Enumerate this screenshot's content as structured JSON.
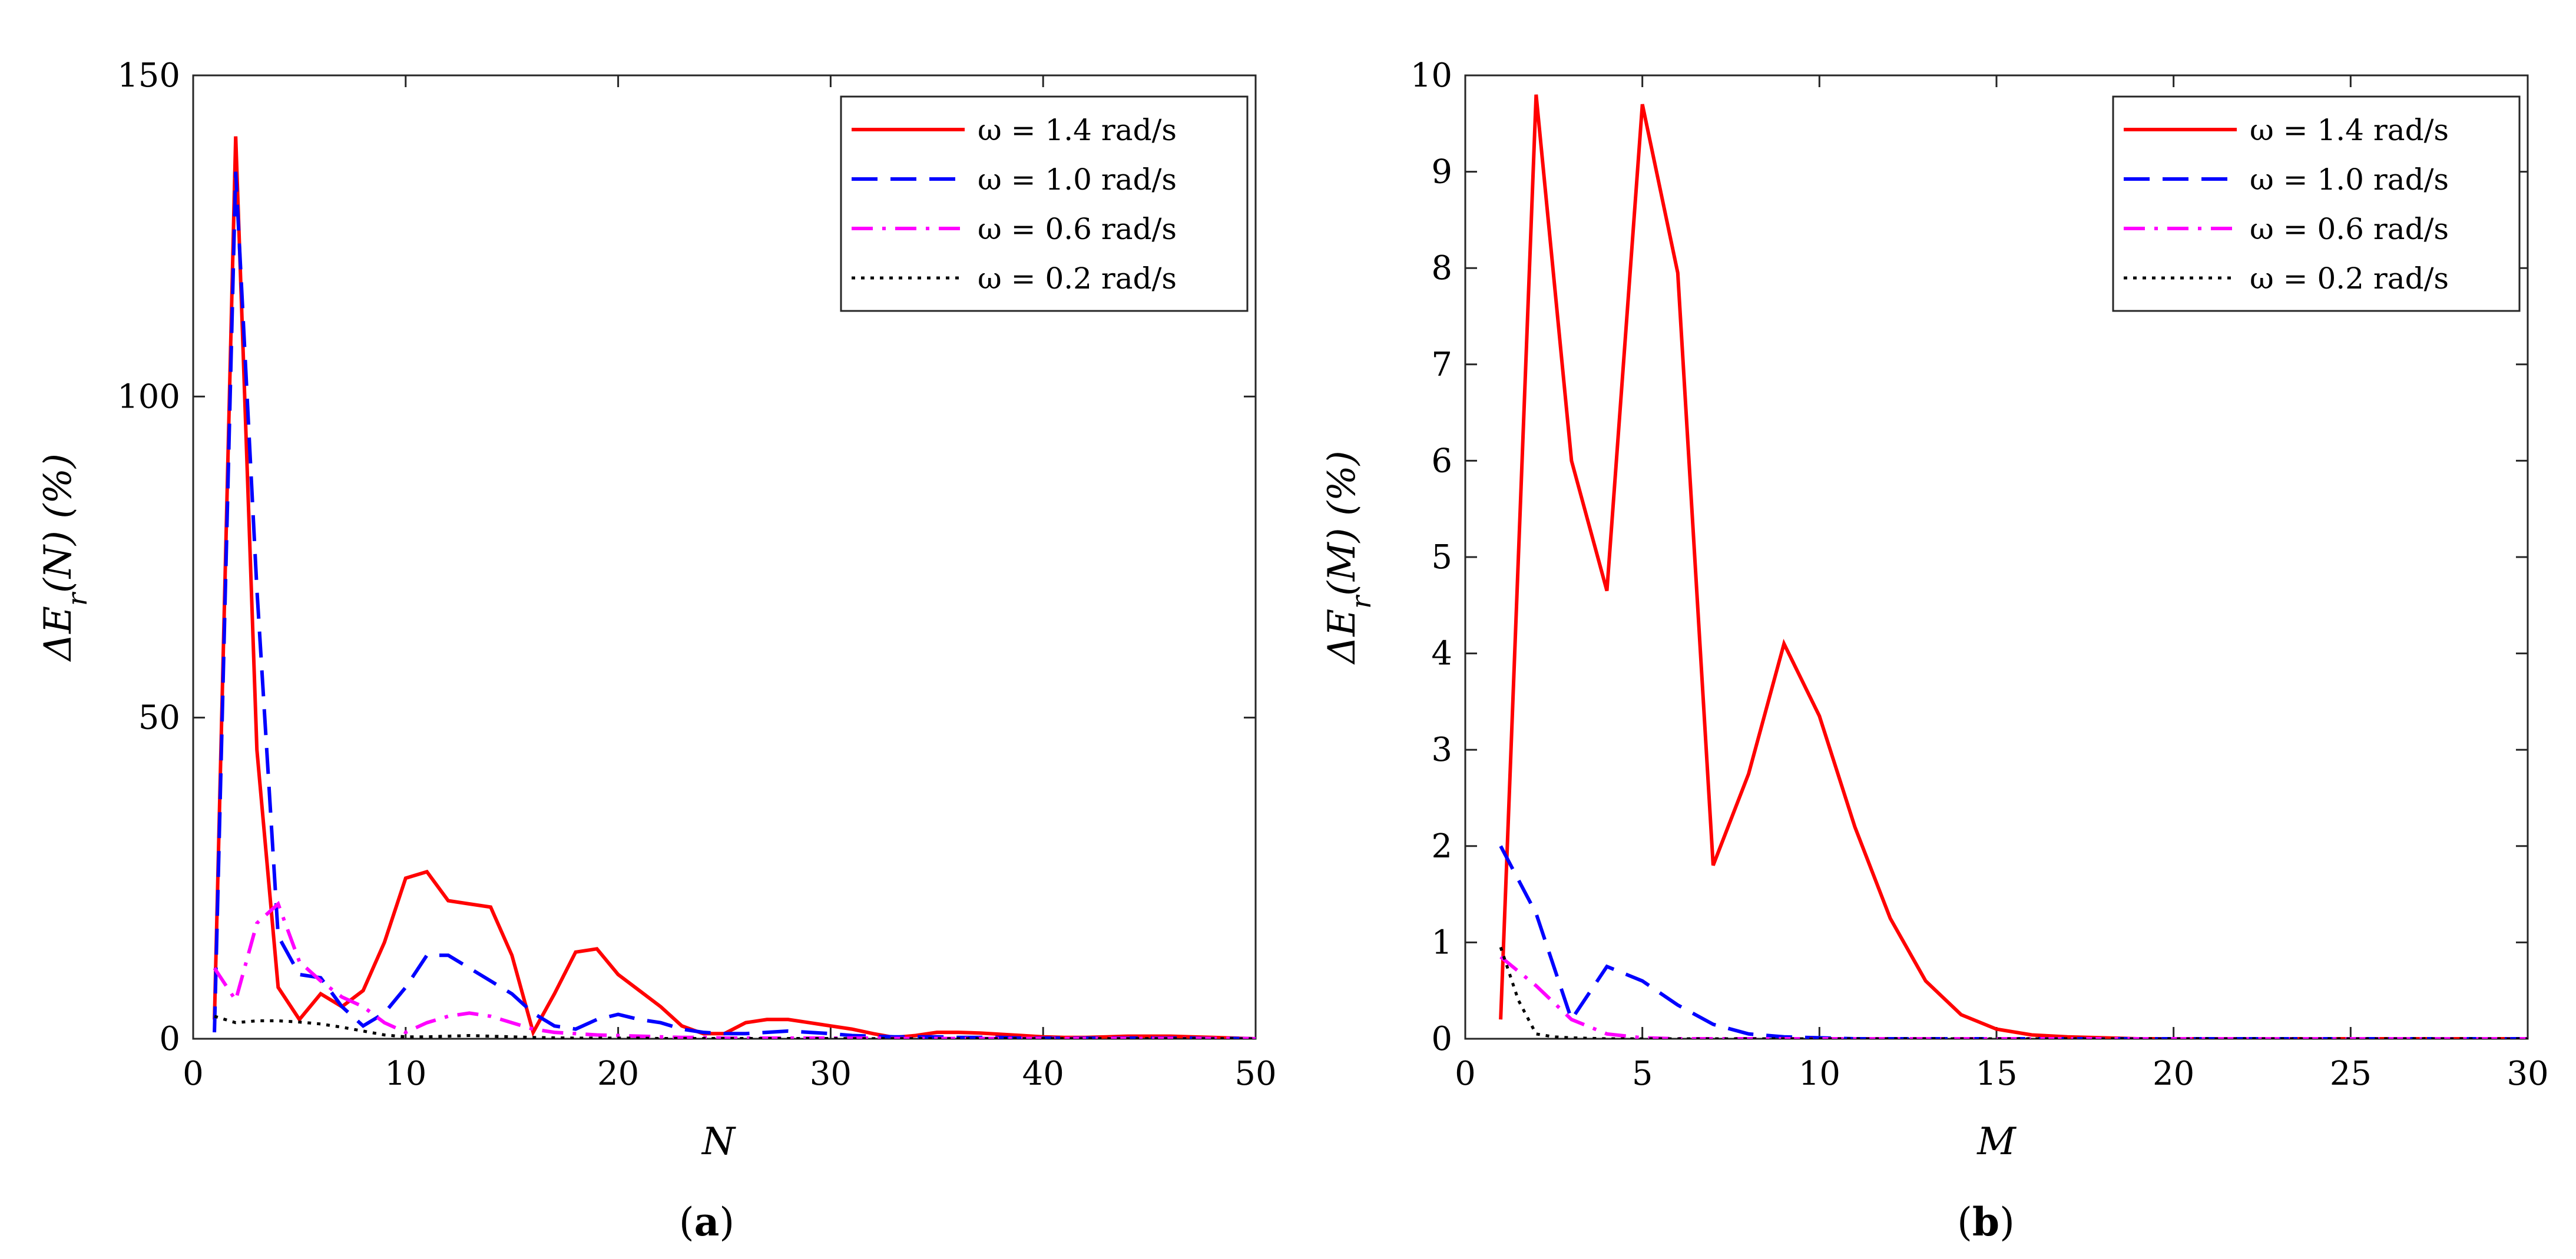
{
  "chart_data": [
    {
      "id": "a",
      "type": "line",
      "caption_letter": "a",
      "xlabel": "N",
      "ylabel": "ΔE_r(N) (%)",
      "xlim": [
        0,
        50
      ],
      "ylim": [
        0,
        150
      ],
      "xticks": [
        0,
        10,
        20,
        30,
        40,
        50
      ],
      "yticks": [
        0,
        50,
        100,
        150
      ],
      "grid": false,
      "legend_position": "top-right",
      "series": [
        {
          "name": "ω = 1.4 rad/s",
          "color": "#ff0000",
          "style": "solid",
          "x": [
            1,
            2,
            3,
            4,
            5,
            6,
            7,
            8,
            9,
            10,
            11,
            12,
            13,
            14,
            15,
            16,
            17,
            18,
            19,
            20,
            21,
            22,
            23,
            24,
            25,
            26,
            27,
            28,
            29,
            30,
            31,
            32,
            33,
            34,
            35,
            36,
            37,
            38,
            39,
            40,
            41,
            42,
            43,
            44,
            45,
            46,
            47,
            48,
            49,
            50
          ],
          "values": [
            3,
            140.5,
            45,
            8,
            3,
            7,
            5,
            7.5,
            15,
            25,
            26,
            21.5,
            21,
            20.5,
            13,
            1,
            7,
            13.5,
            14,
            10,
            7.5,
            5,
            2,
            0.8,
            0.8,
            2.5,
            3,
            3,
            2.5,
            2,
            1.5,
            0.8,
            0.2,
            0.5,
            1,
            1,
            0.9,
            0.7,
            0.5,
            0.3,
            0.2,
            0.2,
            0.3,
            0.4,
            0.4,
            0.4,
            0.3,
            0.2,
            0.1,
            0
          ]
        },
        {
          "name": "ω = 1.0 rad/s",
          "color": "#0000ff",
          "style": "dashed",
          "x": [
            1,
            2,
            3,
            4,
            5,
            6,
            7,
            8,
            9,
            10,
            11,
            12,
            13,
            14,
            15,
            16,
            17,
            18,
            19,
            20,
            21,
            22,
            23,
            24,
            25,
            26,
            27,
            28,
            29,
            30,
            31,
            32,
            33,
            34,
            35,
            36,
            37,
            38,
            39,
            40,
            41,
            42,
            43,
            44,
            45,
            46,
            47,
            48,
            49,
            50
          ],
          "values": [
            1,
            135,
            70,
            16,
            10,
            9.5,
            5,
            2,
            4,
            8,
            13,
            13,
            11,
            9,
            7,
            4,
            2,
            1.5,
            3,
            3.8,
            3,
            2.5,
            1.5,
            1,
            0.8,
            0.8,
            1,
            1.2,
            1,
            0.8,
            0.5,
            0.4,
            0.3,
            0.3,
            0.3,
            0.2,
            0.2,
            0.2,
            0.1,
            0.1,
            0.1,
            0.1,
            0.1,
            0.1,
            0.1,
            0.1,
            0.1,
            0.05,
            0.05,
            0
          ]
        },
        {
          "name": "ω = 0.6 rad/s",
          "color": "#ff00ff",
          "style": "dashdot",
          "x": [
            1,
            2,
            3,
            4,
            5,
            6,
            7,
            8,
            9,
            10,
            11,
            12,
            13,
            14,
            15,
            16,
            17,
            18,
            19,
            20,
            21,
            22,
            23,
            24,
            25,
            26,
            27,
            28,
            29,
            30,
            31,
            32,
            33,
            34,
            35,
            36,
            37,
            38,
            39,
            40,
            41,
            42,
            43,
            44,
            45,
            46,
            47,
            48,
            49,
            50
          ],
          "values": [
            11,
            6,
            18,
            21,
            12,
            9,
            6.5,
            5,
            2.5,
            1,
            2.5,
            3.5,
            4,
            3.5,
            2.5,
            1.5,
            1,
            0.8,
            0.6,
            0.5,
            0.4,
            0.3,
            0.2,
            0.2,
            0.1,
            0.1,
            0.1,
            0.1,
            0.1,
            0.1,
            0.1,
            0.1,
            0.05,
            0.05,
            0.05,
            0.05,
            0.05,
            0.05,
            0.05,
            0.05,
            0.05,
            0.05,
            0.05,
            0.05,
            0.05,
            0.05,
            0.05,
            0.05,
            0.05,
            0
          ]
        },
        {
          "name": "ω = 0.2 rad/s",
          "color": "#000000",
          "style": "dotted",
          "x": [
            1,
            2,
            3,
            4,
            5,
            6,
            7,
            8,
            9,
            10,
            11,
            12,
            13,
            14,
            15,
            16,
            17,
            18,
            19,
            20,
            21,
            22,
            23,
            24,
            25,
            26,
            27,
            28,
            29,
            30,
            31,
            32,
            33,
            34,
            35,
            36,
            37,
            38,
            39,
            40,
            41,
            42,
            43,
            44,
            45,
            46,
            47,
            48,
            49,
            50
          ],
          "values": [
            3.5,
            2.5,
            2.8,
            2.8,
            2.6,
            2.3,
            1.8,
            1.2,
            0.6,
            0.3,
            0.3,
            0.4,
            0.5,
            0.4,
            0.3,
            0.2,
            0.15,
            0.1,
            0.1,
            0.1,
            0.1,
            0.05,
            0.05,
            0.05,
            0.05,
            0.05,
            0.05,
            0.05,
            0.05,
            0.05,
            0.02,
            0.02,
            0.02,
            0.02,
            0.02,
            0.02,
            0.02,
            0.02,
            0.02,
            0.02,
            0.02,
            0.02,
            0.02,
            0.02,
            0.02,
            0.02,
            0.02,
            0.02,
            0.02,
            0
          ]
        }
      ]
    },
    {
      "id": "b",
      "type": "line",
      "caption_letter": "b",
      "xlabel": "M",
      "ylabel": "ΔE_r(M) (%)",
      "xlim": [
        0,
        30
      ],
      "ylim": [
        0,
        10
      ],
      "xticks": [
        0,
        5,
        10,
        15,
        20,
        25,
        30
      ],
      "yticks": [
        0,
        1,
        2,
        3,
        4,
        5,
        6,
        7,
        8,
        9,
        10
      ],
      "grid": false,
      "legend_position": "top-right",
      "series": [
        {
          "name": "ω = 1.4 rad/s",
          "color": "#ff0000",
          "style": "solid",
          "x": [
            1,
            2,
            3,
            4,
            5,
            6,
            7,
            8,
            9,
            10,
            11,
            12,
            13,
            14,
            15,
            16,
            17,
            18,
            19,
            20,
            21,
            22,
            23,
            24,
            25,
            26,
            27,
            28,
            29,
            30
          ],
          "values": [
            0.2,
            9.8,
            6,
            4.65,
            9.7,
            7.95,
            1.8,
            2.75,
            4.1,
            3.35,
            2.2,
            1.25,
            0.6,
            0.25,
            0.1,
            0.04,
            0.02,
            0.01,
            0,
            0,
            0,
            0,
            0,
            0,
            0,
            0,
            0,
            0,
            0,
            0
          ]
        },
        {
          "name": "ω = 1.0 rad/s",
          "color": "#0000ff",
          "style": "dashed",
          "x": [
            1,
            2,
            3,
            4,
            5,
            6,
            7,
            8,
            9,
            10,
            11,
            12,
            13,
            14,
            15,
            16,
            17,
            18,
            19,
            20,
            21,
            22,
            23,
            24,
            25,
            26,
            27,
            28,
            29,
            30
          ],
          "values": [
            2,
            1.3,
            0.2,
            0.75,
            0.6,
            0.35,
            0.15,
            0.05,
            0.02,
            0.01,
            0,
            0,
            0,
            0,
            0,
            0,
            0,
            0,
            0,
            0,
            0,
            0,
            0,
            0,
            0,
            0,
            0,
            0,
            0,
            0
          ]
        },
        {
          "name": "ω = 0.6 rad/s",
          "color": "#ff00ff",
          "style": "dashdot",
          "x": [
            1,
            2,
            3,
            4,
            5,
            6,
            7,
            8,
            9,
            10,
            11,
            12,
            13,
            14,
            15,
            16,
            17,
            18,
            19,
            20,
            21,
            22,
            23,
            24,
            25,
            26,
            27,
            28,
            29,
            30
          ],
          "values": [
            0.85,
            0.55,
            0.2,
            0.05,
            0.01,
            0,
            0,
            0,
            0,
            0,
            0,
            0,
            0,
            0,
            0,
            0,
            0,
            0,
            0,
            0,
            0,
            0,
            0,
            0,
            0,
            0,
            0,
            0,
            0,
            0
          ]
        },
        {
          "name": "ω = 0.2 rad/s",
          "color": "#000000",
          "style": "dotted",
          "x": [
            1,
            1.5,
            2,
            2.5,
            3,
            4,
            5,
            6,
            7,
            8,
            9,
            10,
            11,
            12,
            13,
            14,
            15,
            16,
            17,
            18,
            19,
            20,
            21,
            22,
            23,
            24,
            25,
            26,
            27,
            28,
            29,
            30
          ],
          "values": [
            0.95,
            0.4,
            0.05,
            0.02,
            0.01,
            0,
            0,
            0,
            0,
            0,
            0,
            0,
            0,
            0,
            0,
            0,
            0,
            0,
            0,
            0,
            0,
            0,
            0,
            0,
            0,
            0,
            0,
            0,
            0,
            0,
            0,
            0
          ]
        }
      ]
    }
  ]
}
